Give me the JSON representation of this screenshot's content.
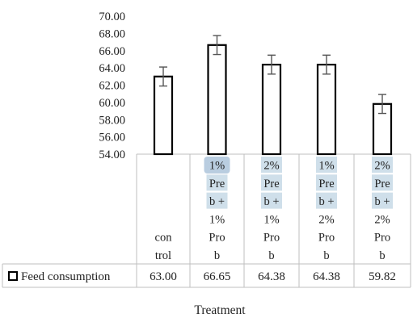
{
  "chart_data": {
    "type": "bar",
    "title": "",
    "xlabel": "Treatment",
    "ylabel": "",
    "ylim": [
      54,
      70
    ],
    "y_ticks": [
      "70.00",
      "68.00",
      "66.00",
      "64.00",
      "62.00",
      "60.00",
      "58.00",
      "56.00",
      "54.00"
    ],
    "categories": [
      [
        "con",
        "trol"
      ],
      [
        "1%",
        "Pre",
        "b +",
        "1%",
        "Pro",
        "b"
      ],
      [
        "2%",
        "Pre",
        "b +",
        "1%",
        "Pro",
        "b"
      ],
      [
        "1%",
        "Pre",
        "b +",
        "2%",
        "Pro",
        "b"
      ],
      [
        "2%",
        "Pre",
        "b +",
        "2%",
        "Pro",
        "b"
      ]
    ],
    "series": [
      {
        "name": "Feed consumption",
        "values": [
          63.0,
          66.65,
          64.38,
          64.38,
          59.82
        ],
        "value_labels": [
          "63.00",
          "66.65",
          "64.38",
          "64.38",
          "59.82"
        ],
        "error": [
          1.1,
          1.1,
          1.1,
          1.1,
          1.1
        ]
      }
    ],
    "grid": false,
    "legend": "data-table",
    "bar_fill": "#ffffff",
    "bar_stroke": "#000000",
    "error_color": "#555555",
    "highlight_color": "#cfdfea",
    "highlight_strong": "#b9cde0"
  }
}
